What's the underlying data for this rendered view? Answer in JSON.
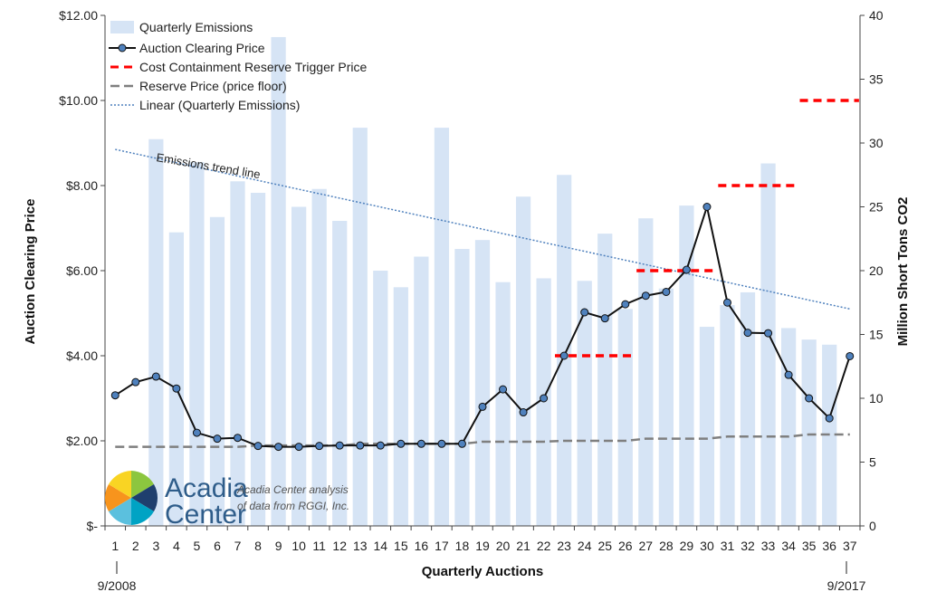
{
  "chart_data": {
    "type": "bar",
    "xlabel": "Quarterly Auctions",
    "ylabel": "Auction Clearing Price",
    "y2label": "Million Short Tons CO2",
    "ylim": [
      0,
      12
    ],
    "y2lim": [
      0,
      40
    ],
    "x": [
      "1",
      "2",
      "3",
      "4",
      "5",
      "6",
      "7",
      "8",
      "9",
      "10",
      "11",
      "12",
      "13",
      "14",
      "15",
      "16",
      "17",
      "18",
      "19",
      "20",
      "21",
      "22",
      "23",
      "24",
      "25",
      "26",
      "27",
      "28",
      "29",
      "30",
      "31",
      "32",
      "33",
      "34",
      "35",
      "36",
      "37"
    ],
    "y_ticks": [
      "$-",
      "$2.00",
      "$4.00",
      "$6.00",
      "$8.00",
      "$10.00",
      "$12.00"
    ],
    "y_tick_values": [
      0,
      2,
      4,
      6,
      8,
      10,
      12
    ],
    "y2_ticks": [
      "0",
      "5",
      "10",
      "15",
      "20",
      "25",
      "30",
      "35",
      "40"
    ],
    "y2_tick_values": [
      0,
      5,
      10,
      15,
      20,
      25,
      30,
      35,
      40
    ],
    "date_start": "9/2008",
    "date_end": "9/2017",
    "legend_position": "top-left",
    "series": [
      {
        "name": "Quarterly Emissions",
        "kind": "bar",
        "axis": "right",
        "color": "#d6e4f5",
        "values": [
          null,
          null,
          30.3,
          23.0,
          28.5,
          24.2,
          27.0,
          26.1,
          38.3,
          25.0,
          26.4,
          23.9,
          31.2,
          20.0,
          18.7,
          21.1,
          31.2,
          21.7,
          22.4,
          19.1,
          25.8,
          19.4,
          27.5,
          19.2,
          22.9,
          17.0,
          24.1,
          18.6,
          25.1,
          15.6,
          17.3,
          18.3,
          28.4,
          15.5,
          14.6,
          14.2,
          null
        ]
      },
      {
        "name": "Auction Clearing Price",
        "kind": "line",
        "axis": "left",
        "color": "#111111",
        "marker_color": "#4f81bd",
        "values": [
          3.07,
          3.38,
          3.51,
          3.23,
          2.19,
          2.05,
          2.07,
          1.88,
          1.86,
          1.86,
          1.88,
          1.89,
          1.89,
          1.89,
          1.93,
          1.93,
          1.93,
          1.93,
          2.8,
          3.21,
          2.67,
          3.0,
          4.0,
          5.02,
          4.88,
          5.21,
          5.41,
          5.5,
          6.02,
          7.5,
          5.25,
          4.54,
          4.53,
          3.55,
          3.0,
          2.53,
          3.99
        ]
      },
      {
        "name": "Cost Containment Reserve Trigger Price",
        "kind": "step-dash",
        "axis": "left",
        "color": "#ff0000",
        "segments": [
          {
            "from": 23,
            "to": 26,
            "value": 4.0
          },
          {
            "from": 27,
            "to": 30,
            "value": 6.0
          },
          {
            "from": 31,
            "to": 34,
            "value": 8.0
          },
          {
            "from": 35,
            "to": 37,
            "value": 10.0
          }
        ]
      },
      {
        "name": "Reserve Price (price floor)",
        "kind": "dash-line",
        "axis": "left",
        "color": "#7f7f7f",
        "values": [
          1.86,
          1.86,
          1.86,
          1.86,
          1.86,
          1.86,
          1.86,
          1.89,
          1.89,
          1.89,
          1.89,
          1.89,
          1.93,
          1.93,
          1.93,
          1.93,
          1.93,
          1.93,
          1.98,
          1.98,
          1.98,
          1.98,
          2.0,
          2.0,
          2.0,
          2.0,
          2.05,
          2.05,
          2.05,
          2.05,
          2.1,
          2.1,
          2.1,
          2.1,
          2.15,
          2.15,
          2.15
        ]
      },
      {
        "name": "Linear (Quarterly Emissions)",
        "kind": "trend",
        "axis": "right",
        "color": "#4f81bd",
        "start": 29.5,
        "end": 17.0
      }
    ],
    "annotations": {
      "trend_label": "Emissions trend line"
    }
  },
  "logo": {
    "name_line1": "Acadia",
    "name_line2": "Center",
    "note_line1": "Acadia Center analysis",
    "note_line2": "of data from RGGI, Inc."
  }
}
